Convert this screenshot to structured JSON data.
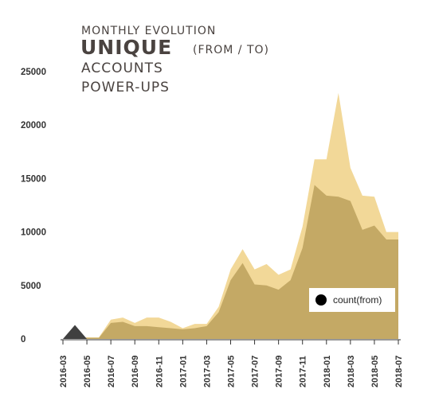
{
  "title": {
    "line1": "MONTHLY EVOLUTION",
    "line2_main": "UNIQUE",
    "line2_suffix": "(FROM / TO)",
    "line3": "ACCOUNTS",
    "line4": "POWER-UPS"
  },
  "legend": {
    "label": "count(from)"
  },
  "colors": {
    "to": "#f2d898",
    "from": "#c4a965",
    "spike": "#404040",
    "axis": "#333333",
    "legend_bg": "#ffffff"
  },
  "chart_data": {
    "type": "area",
    "x": [
      "2016-03",
      "2016-04",
      "2016-05",
      "2016-06",
      "2016-07",
      "2016-08",
      "2016-09",
      "2016-10",
      "2016-11",
      "2016-12",
      "2017-01",
      "2017-02",
      "2017-03",
      "2017-04",
      "2017-05",
      "2017-06",
      "2017-07",
      "2017-08",
      "2017-09",
      "2017-10",
      "2017-11",
      "2017-12",
      "2018-01",
      "2018-02",
      "2018-03",
      "2018-04",
      "2018-05",
      "2018-06",
      "2018-07"
    ],
    "xticks": [
      "2016-03",
      "2016-05",
      "2016-07",
      "2016-09",
      "2016-11",
      "2017-01",
      "2017-03",
      "2017-05",
      "2017-07",
      "2017-09",
      "2017-11",
      "2018-01",
      "2018-03",
      "2018-05",
      "2018-07"
    ],
    "yticks": [
      0,
      5000,
      10000,
      15000,
      20000,
      25000
    ],
    "ylim": [
      0,
      26000
    ],
    "series": [
      {
        "values": [
          0,
          100,
          150,
          150,
          1800,
          2000,
          1500,
          2000,
          2000,
          1600,
          1000,
          1400,
          1400,
          3000,
          6500,
          8400,
          6500,
          7000,
          6000,
          6500,
          10500,
          16800,
          16800,
          23000,
          16000,
          13400,
          13300,
          10000,
          10000
        ]
      },
      {
        "name": "count(from)",
        "values": [
          0,
          50,
          100,
          100,
          1500,
          1600,
          1200,
          1200,
          1100,
          1000,
          900,
          1000,
          1200,
          2500,
          5500,
          7100,
          5100,
          5000,
          4600,
          5500,
          8500,
          14400,
          13400,
          13300,
          12900,
          10200,
          10600,
          9300,
          9300
        ]
      },
      {
        "values": [
          0,
          1300,
          0,
          0,
          0,
          0,
          0,
          0,
          0,
          0,
          0,
          0,
          0,
          0,
          0,
          0,
          0,
          0,
          0,
          0,
          0,
          0,
          0,
          0,
          0,
          0,
          0,
          0,
          0
        ]
      }
    ]
  }
}
